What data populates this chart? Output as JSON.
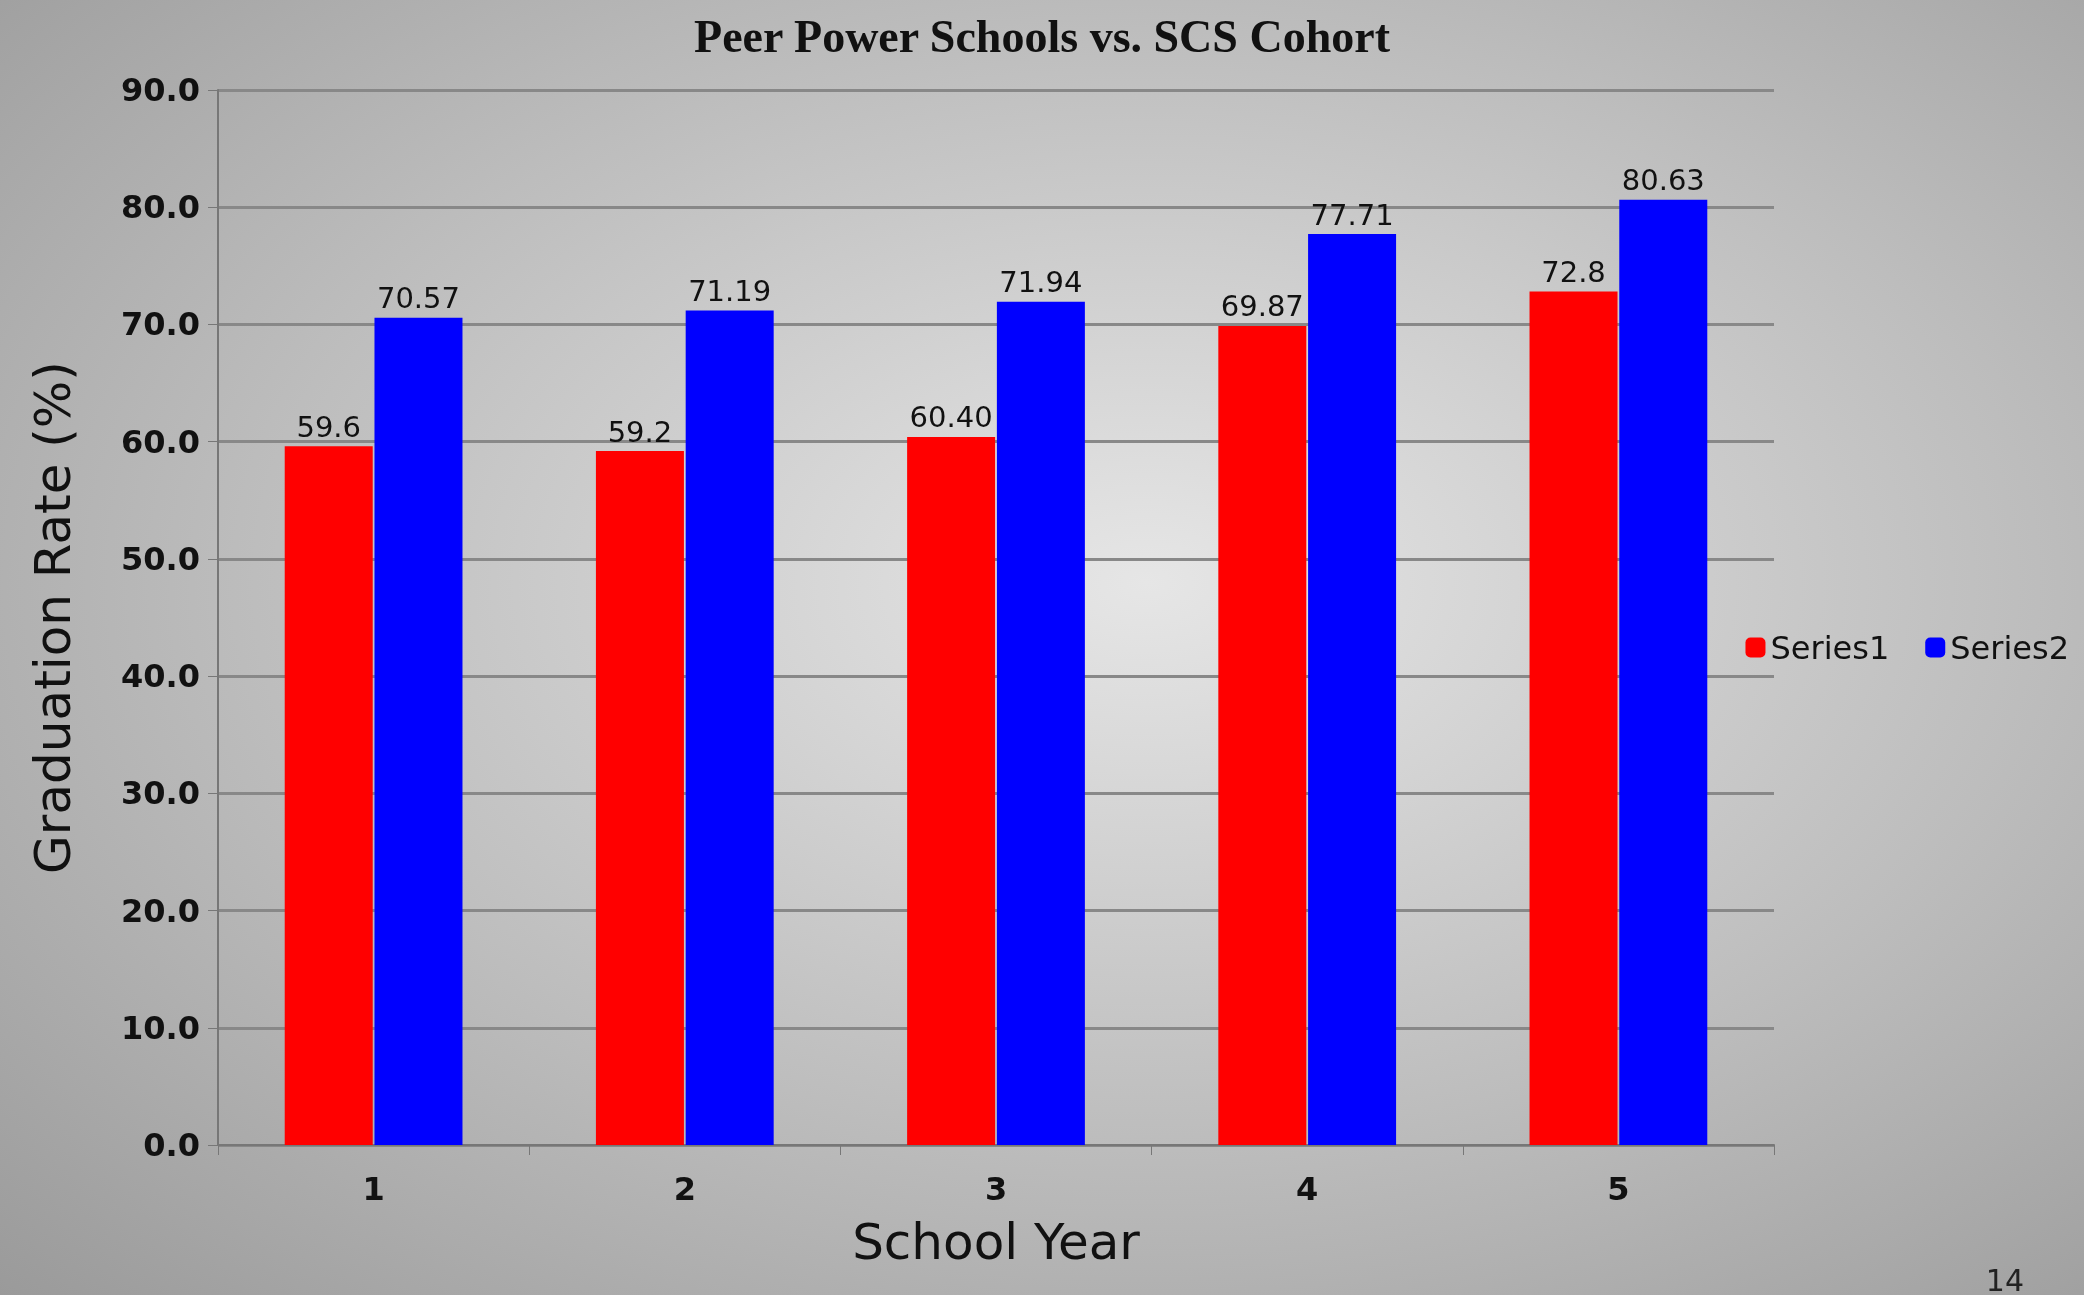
{
  "chart_data": {
    "type": "bar",
    "title": "Peer Power Schools vs. SCS Cohort",
    "xlabel": "School Year",
    "ylabel": "Graduation Rate (%)",
    "categories": [
      "1",
      "2",
      "3",
      "4",
      "5"
    ],
    "series": [
      {
        "name": "Series1",
        "color": "#ff0000",
        "values": [
          59.6,
          59.2,
          60.4,
          69.87,
          72.8
        ],
        "value_labels": [
          "59.6",
          "59.2",
          "60.40",
          "69.87",
          "72.8"
        ]
      },
      {
        "name": "Series2",
        "color": "#0000ff",
        "values": [
          70.57,
          71.19,
          71.94,
          77.71,
          80.63
        ],
        "value_labels": [
          "70.57",
          "71.19",
          "71.94",
          "77.71",
          "80.63"
        ]
      }
    ],
    "ylim": [
      0,
      90
    ],
    "yticks": [
      {
        "value": 0,
        "label": "0.0"
      },
      {
        "value": 10,
        "label": "10.0"
      },
      {
        "value": 20,
        "label": "20.0"
      },
      {
        "value": 30,
        "label": "30.0"
      },
      {
        "value": 40,
        "label": "40.0"
      },
      {
        "value": 50,
        "label": "50.0"
      },
      {
        "value": 60,
        "label": "60.0"
      },
      {
        "value": 70,
        "label": "70.0"
      },
      {
        "value": 80,
        "label": "80.0"
      },
      {
        "value": 90,
        "label": "90.0"
      }
    ],
    "grid": "y",
    "legend": "right",
    "annotations": [
      "14"
    ]
  }
}
